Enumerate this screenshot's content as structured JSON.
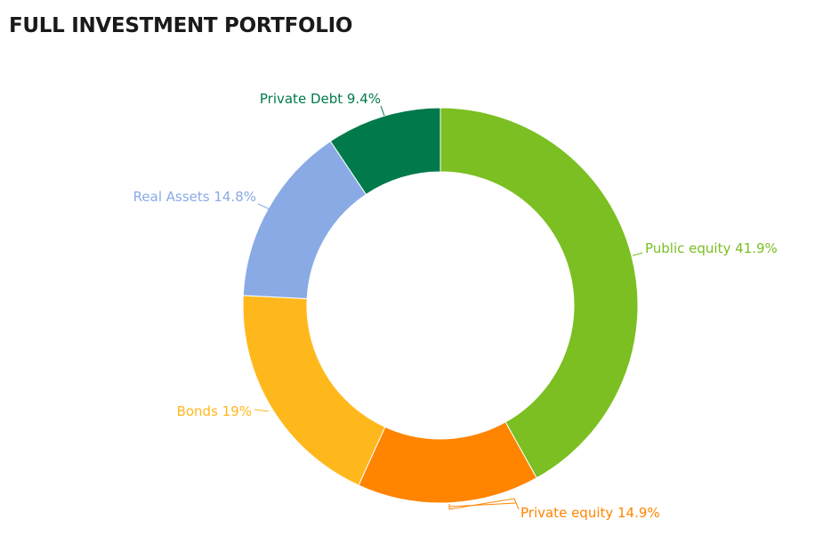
{
  "title": "FULL INVESTMENT PORTFOLIO",
  "chart_data": {
    "type": "pie",
    "subtype": "donut",
    "title": "FULL INVESTMENT PORTFOLIO",
    "categories": [
      "Public equity",
      "Private equity",
      "Bonds",
      "Real Assets",
      "Private Debt"
    ],
    "values": [
      41.9,
      14.9,
      19,
      14.8,
      9.4
    ],
    "labels": [
      "Public equity 41.9%",
      "Private equity 14.9%",
      "Bonds 19%",
      "Real Assets 14.8%",
      "Private Debt 9.4%"
    ],
    "colors": [
      "#7bbf22",
      "#ff8400",
      "#ffb81c",
      "#8aaae5",
      "#007a4a"
    ],
    "start_angle": "12 o'clock",
    "direction": "clockwise",
    "legend": "none (data labels with leader lines)"
  }
}
